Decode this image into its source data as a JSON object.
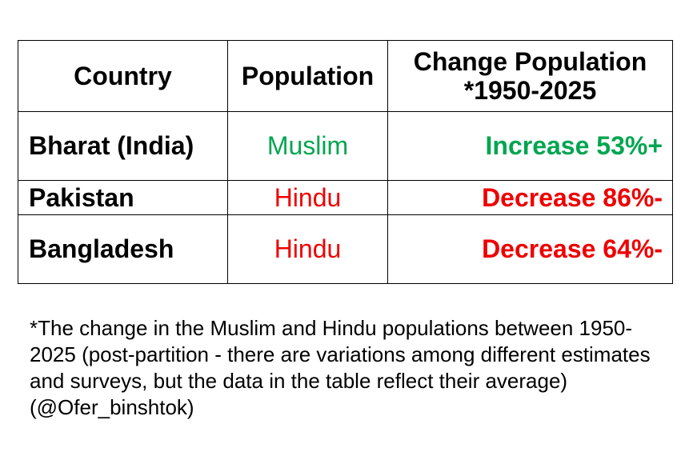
{
  "table": {
    "headers": {
      "country": "Country",
      "population": "Population",
      "change_line1": "Change Population",
      "change_line2": "*1950-2025"
    },
    "rows": [
      {
        "country": "Bharat (India)",
        "population": "Muslim",
        "change": "Increase 53%+",
        "color": "#00a550"
      },
      {
        "country": "Pakistan",
        "population": "Hindu",
        "change": "Decrease 86%-",
        "color": "#ee0000"
      },
      {
        "country": "Bangladesh",
        "population": "Hindu",
        "change": "Decrease 64%-",
        "color": "#ee0000"
      }
    ]
  },
  "footnote": "*The change in the Muslim and Hindu populations between 1950-2025 (post-partition - there are variations among different estimates and surveys, but the data in the table reflect their average) (@Ofer_binshtok)"
}
